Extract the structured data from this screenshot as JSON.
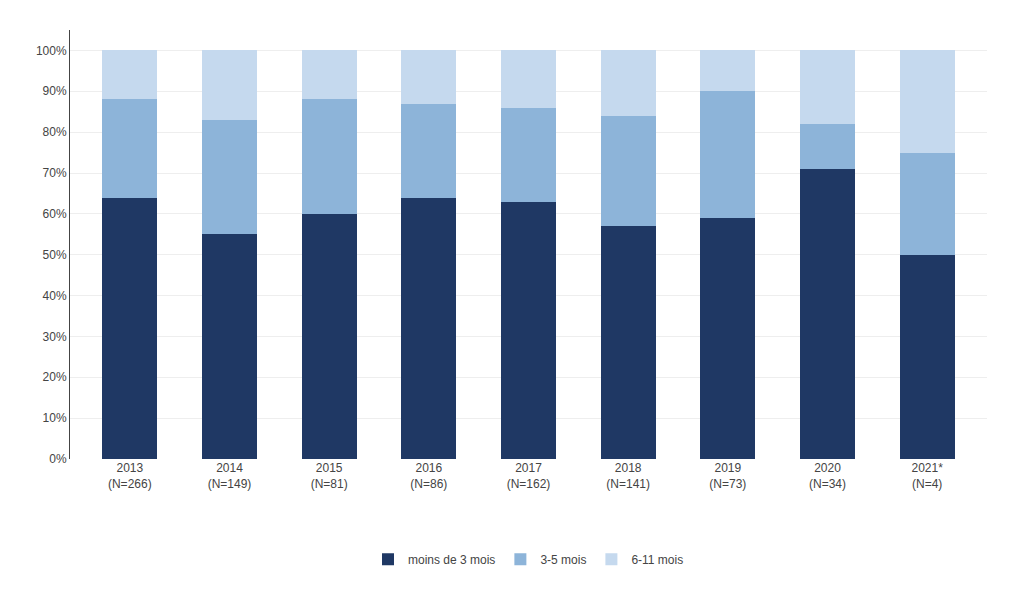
{
  "chart_data": {
    "type": "bar",
    "stacked": true,
    "categories": [
      "2013\n(N=266)",
      "2014\n(N=149)",
      "2015\n(N=81)",
      "2016\n(N=86)",
      "2017\n(N=162)",
      "2018\n(N=141)",
      "2019\n(N=73)",
      "2020\n(N=34)",
      "2021*\n(N=4)"
    ],
    "series": [
      {
        "name": "moins de 3 mois",
        "color": "#1F3864",
        "values": [
          64,
          55,
          60,
          64,
          63,
          57,
          59,
          71,
          50
        ]
      },
      {
        "name": "3-5 mois",
        "color": "#8DB4D9",
        "values": [
          24,
          28,
          28,
          23,
          23,
          27,
          31,
          11,
          25
        ]
      },
      {
        "name": "6-11 mois",
        "color": "#C5D9EE",
        "values": [
          12,
          17,
          12,
          13,
          14,
          16,
          10,
          18,
          25
        ]
      }
    ],
    "ylim": [
      0,
      105
    ],
    "yticks": [
      {
        "value": 0,
        "label": "0%"
      },
      {
        "value": 10,
        "label": "10%"
      },
      {
        "value": 20,
        "label": "20%"
      },
      {
        "value": 30,
        "label": "30%"
      },
      {
        "value": 40,
        "label": "40%"
      },
      {
        "value": 50,
        "label": "50%"
      },
      {
        "value": 60,
        "label": "60%"
      },
      {
        "value": 70,
        "label": "70%"
      },
      {
        "value": 80,
        "label": "80%"
      },
      {
        "value": 90,
        "label": "90%"
      },
      {
        "value": 100,
        "label": "100%"
      }
    ],
    "grid": true,
    "legend": "bottom"
  }
}
